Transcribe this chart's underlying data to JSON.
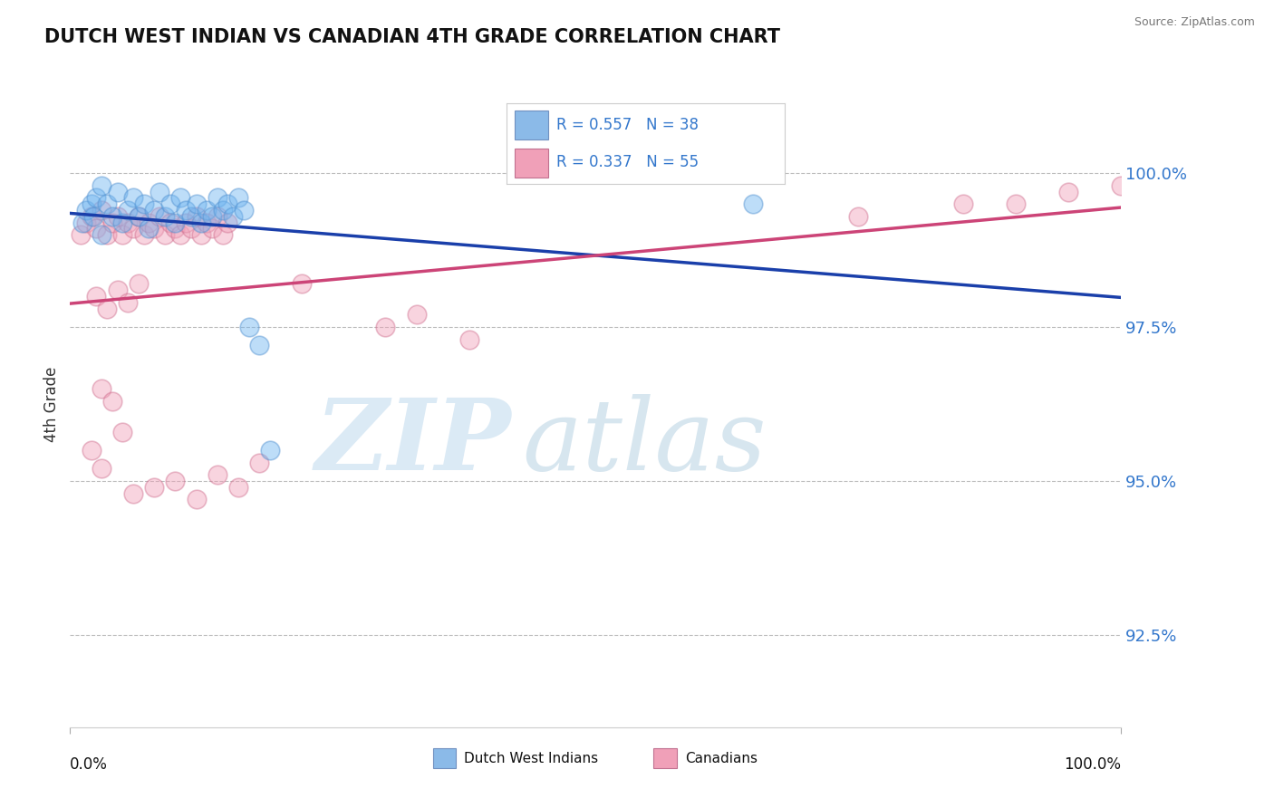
{
  "title": "DUTCH WEST INDIAN VS CANADIAN 4TH GRADE CORRELATION CHART",
  "source": "Source: ZipAtlas.com",
  "ylabel": "4th Grade",
  "xlim": [
    0.0,
    100.0
  ],
  "ylim": [
    91.0,
    101.5
  ],
  "yticks": [
    92.5,
    95.0,
    97.5,
    100.0
  ],
  "ytick_labels": [
    "92.5%",
    "95.0%",
    "97.5%",
    "100.0%"
  ],
  "legend_r1": "R = 0.557",
  "legend_n1": "N = 38",
  "legend_r2": "R = 0.337",
  "legend_n2": "N = 55",
  "blue_color": "#6EB4F0",
  "blue_edge_color": "#5090D0",
  "pink_color": "#F0A0B8",
  "pink_edge_color": "#D07090",
  "blue_line_color": "#1A3FAA",
  "pink_line_color": "#CC4477",
  "watermark_zip": "ZIP",
  "watermark_atlas": "atlas",
  "blue_x": [
    1.2,
    1.5,
    2.0,
    2.2,
    2.5,
    3.0,
    3.0,
    3.5,
    4.0,
    4.5,
    5.0,
    5.5,
    6.0,
    6.5,
    7.0,
    7.5,
    8.0,
    8.5,
    9.0,
    9.5,
    10.0,
    10.5,
    11.0,
    11.5,
    12.0,
    12.5,
    13.0,
    13.5,
    14.0,
    14.5,
    15.0,
    15.5,
    16.0,
    16.5,
    17.0,
    18.0,
    19.0,
    65.0
  ],
  "blue_y": [
    99.2,
    99.4,
    99.5,
    99.3,
    99.6,
    99.8,
    99.0,
    99.5,
    99.3,
    99.7,
    99.2,
    99.4,
    99.6,
    99.3,
    99.5,
    99.1,
    99.4,
    99.7,
    99.3,
    99.5,
    99.2,
    99.6,
    99.4,
    99.3,
    99.5,
    99.2,
    99.4,
    99.3,
    99.6,
    99.4,
    99.5,
    99.3,
    99.6,
    99.4,
    97.5,
    97.2,
    95.5,
    99.5
  ],
  "pink_x": [
    1.0,
    1.5,
    2.0,
    2.5,
    3.0,
    3.5,
    4.0,
    4.5,
    5.0,
    5.5,
    6.0,
    6.5,
    7.0,
    7.5,
    8.0,
    8.5,
    9.0,
    9.5,
    10.0,
    10.5,
    11.0,
    11.5,
    12.0,
    12.5,
    13.0,
    13.5,
    14.0,
    14.5,
    15.0,
    22.0,
    30.0,
    33.0,
    38.0,
    2.5,
    3.5,
    4.5,
    5.5,
    6.5,
    3.0,
    4.0,
    5.0,
    2.0,
    3.0,
    6.0,
    8.0,
    10.0,
    12.0,
    14.0,
    16.0,
    18.0,
    85.0,
    90.0,
    95.0,
    100.0,
    75.0
  ],
  "pink_y": [
    99.0,
    99.2,
    99.3,
    99.1,
    99.4,
    99.0,
    99.2,
    99.3,
    99.0,
    99.2,
    99.1,
    99.3,
    99.0,
    99.2,
    99.1,
    99.3,
    99.0,
    99.2,
    99.1,
    99.0,
    99.2,
    99.1,
    99.3,
    99.0,
    99.2,
    99.1,
    99.3,
    99.0,
    99.2,
    98.2,
    97.5,
    97.7,
    97.3,
    98.0,
    97.8,
    98.1,
    97.9,
    98.2,
    96.5,
    96.3,
    95.8,
    95.5,
    95.2,
    94.8,
    94.9,
    95.0,
    94.7,
    95.1,
    94.9,
    95.3,
    99.5,
    99.5,
    99.7,
    99.8,
    99.3
  ]
}
